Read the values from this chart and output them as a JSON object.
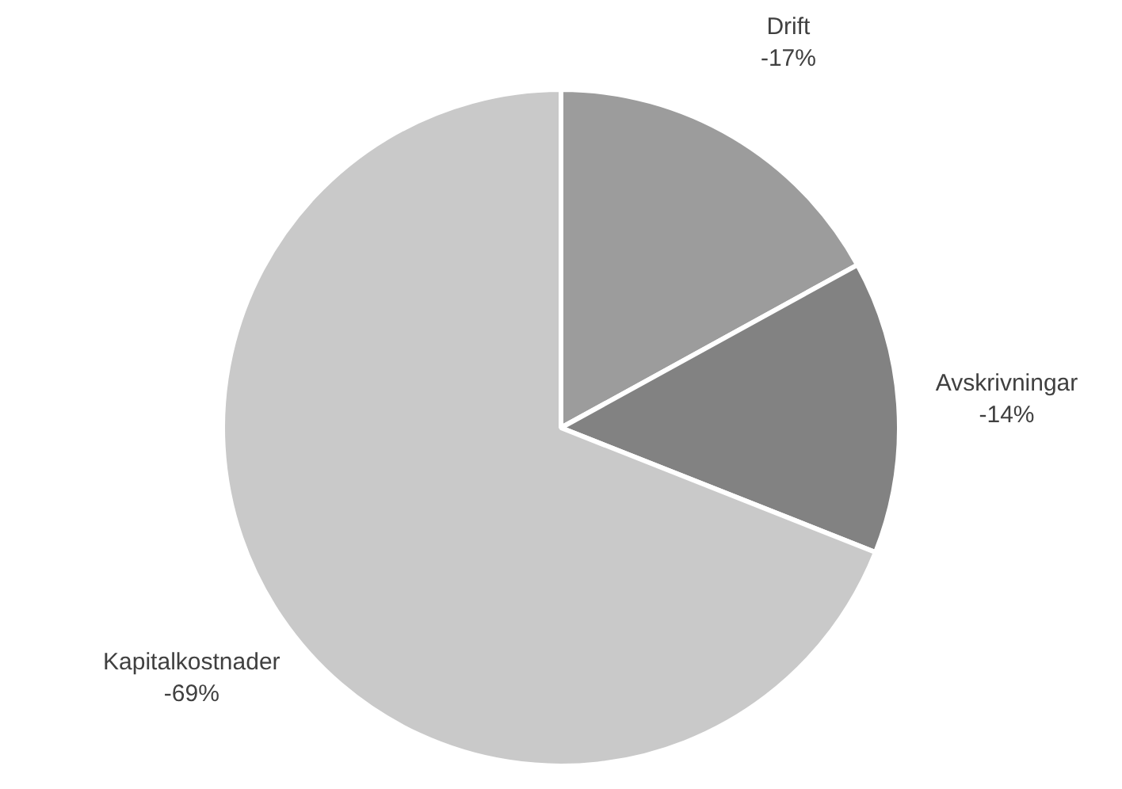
{
  "chart_data": {
    "type": "pie",
    "categories": [
      "Drift\n-17%",
      "Avskrivningar\n-14%",
      "Kapitalkostnader\n-69%"
    ],
    "values": [
      17,
      14,
      69
    ],
    "colors": [
      "#9c9c9c",
      "#828282",
      "#c9c9c9"
    ],
    "legend": false
  }
}
